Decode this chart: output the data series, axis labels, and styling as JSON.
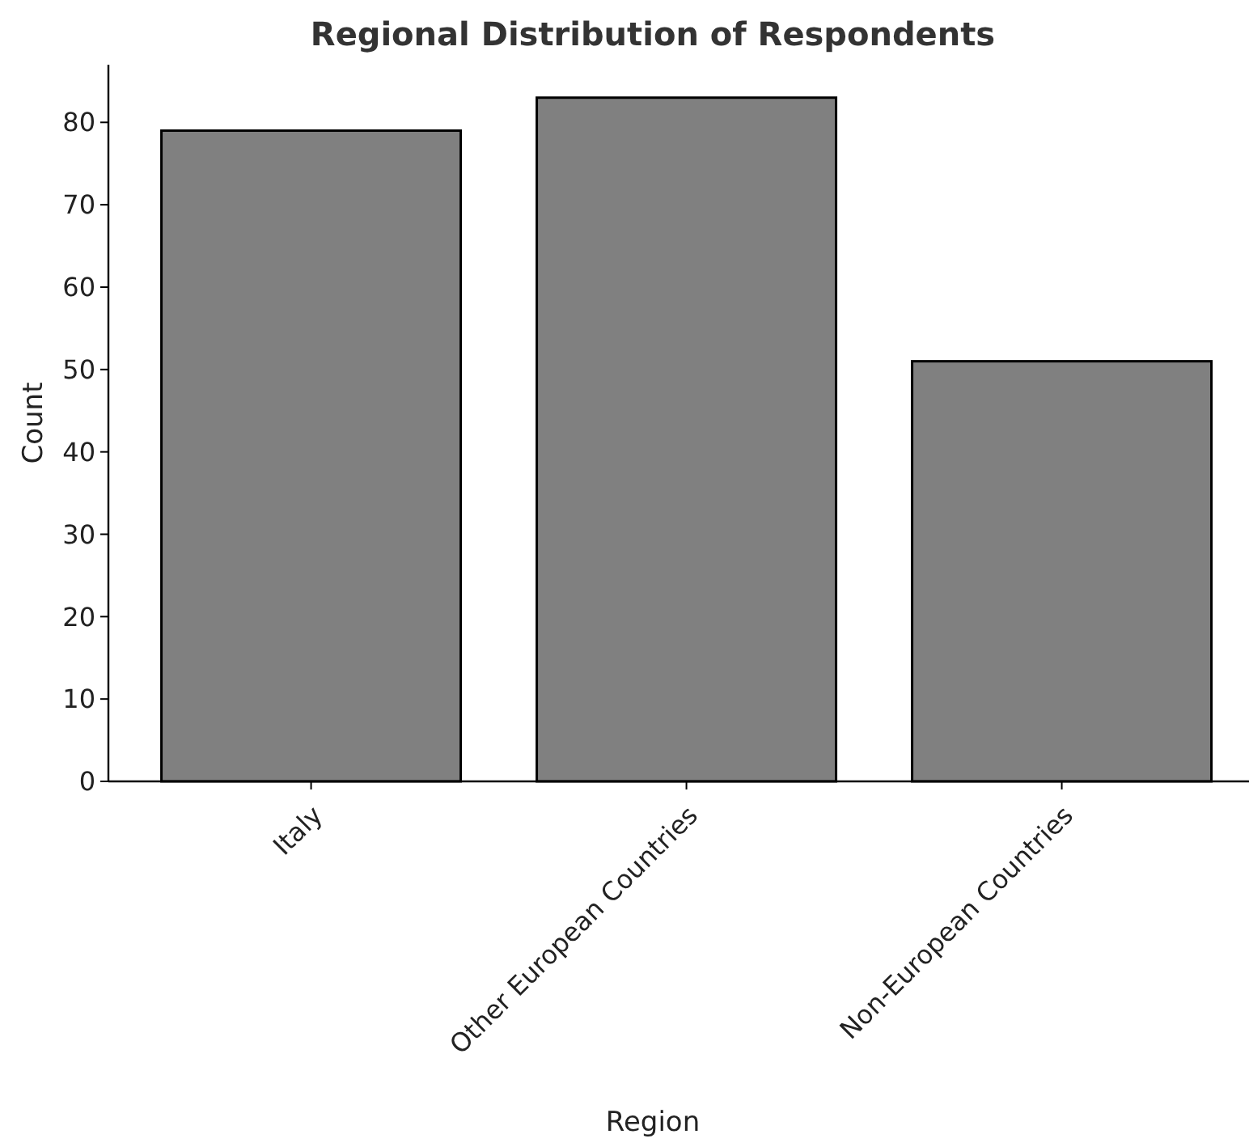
{
  "chart_data": {
    "type": "bar",
    "title": "Regional Distribution of Respondents",
    "xlabel": "Region",
    "ylabel": "Count",
    "categories": [
      "Italy",
      "Other European Countries",
      "Non-European Countries"
    ],
    "values": [
      79,
      83,
      51
    ],
    "color": "#808080",
    "ylim": [
      0,
      87
    ],
    "yticks": [
      0,
      10,
      20,
      30,
      40,
      50,
      60,
      70,
      80
    ],
    "grid": false
  }
}
